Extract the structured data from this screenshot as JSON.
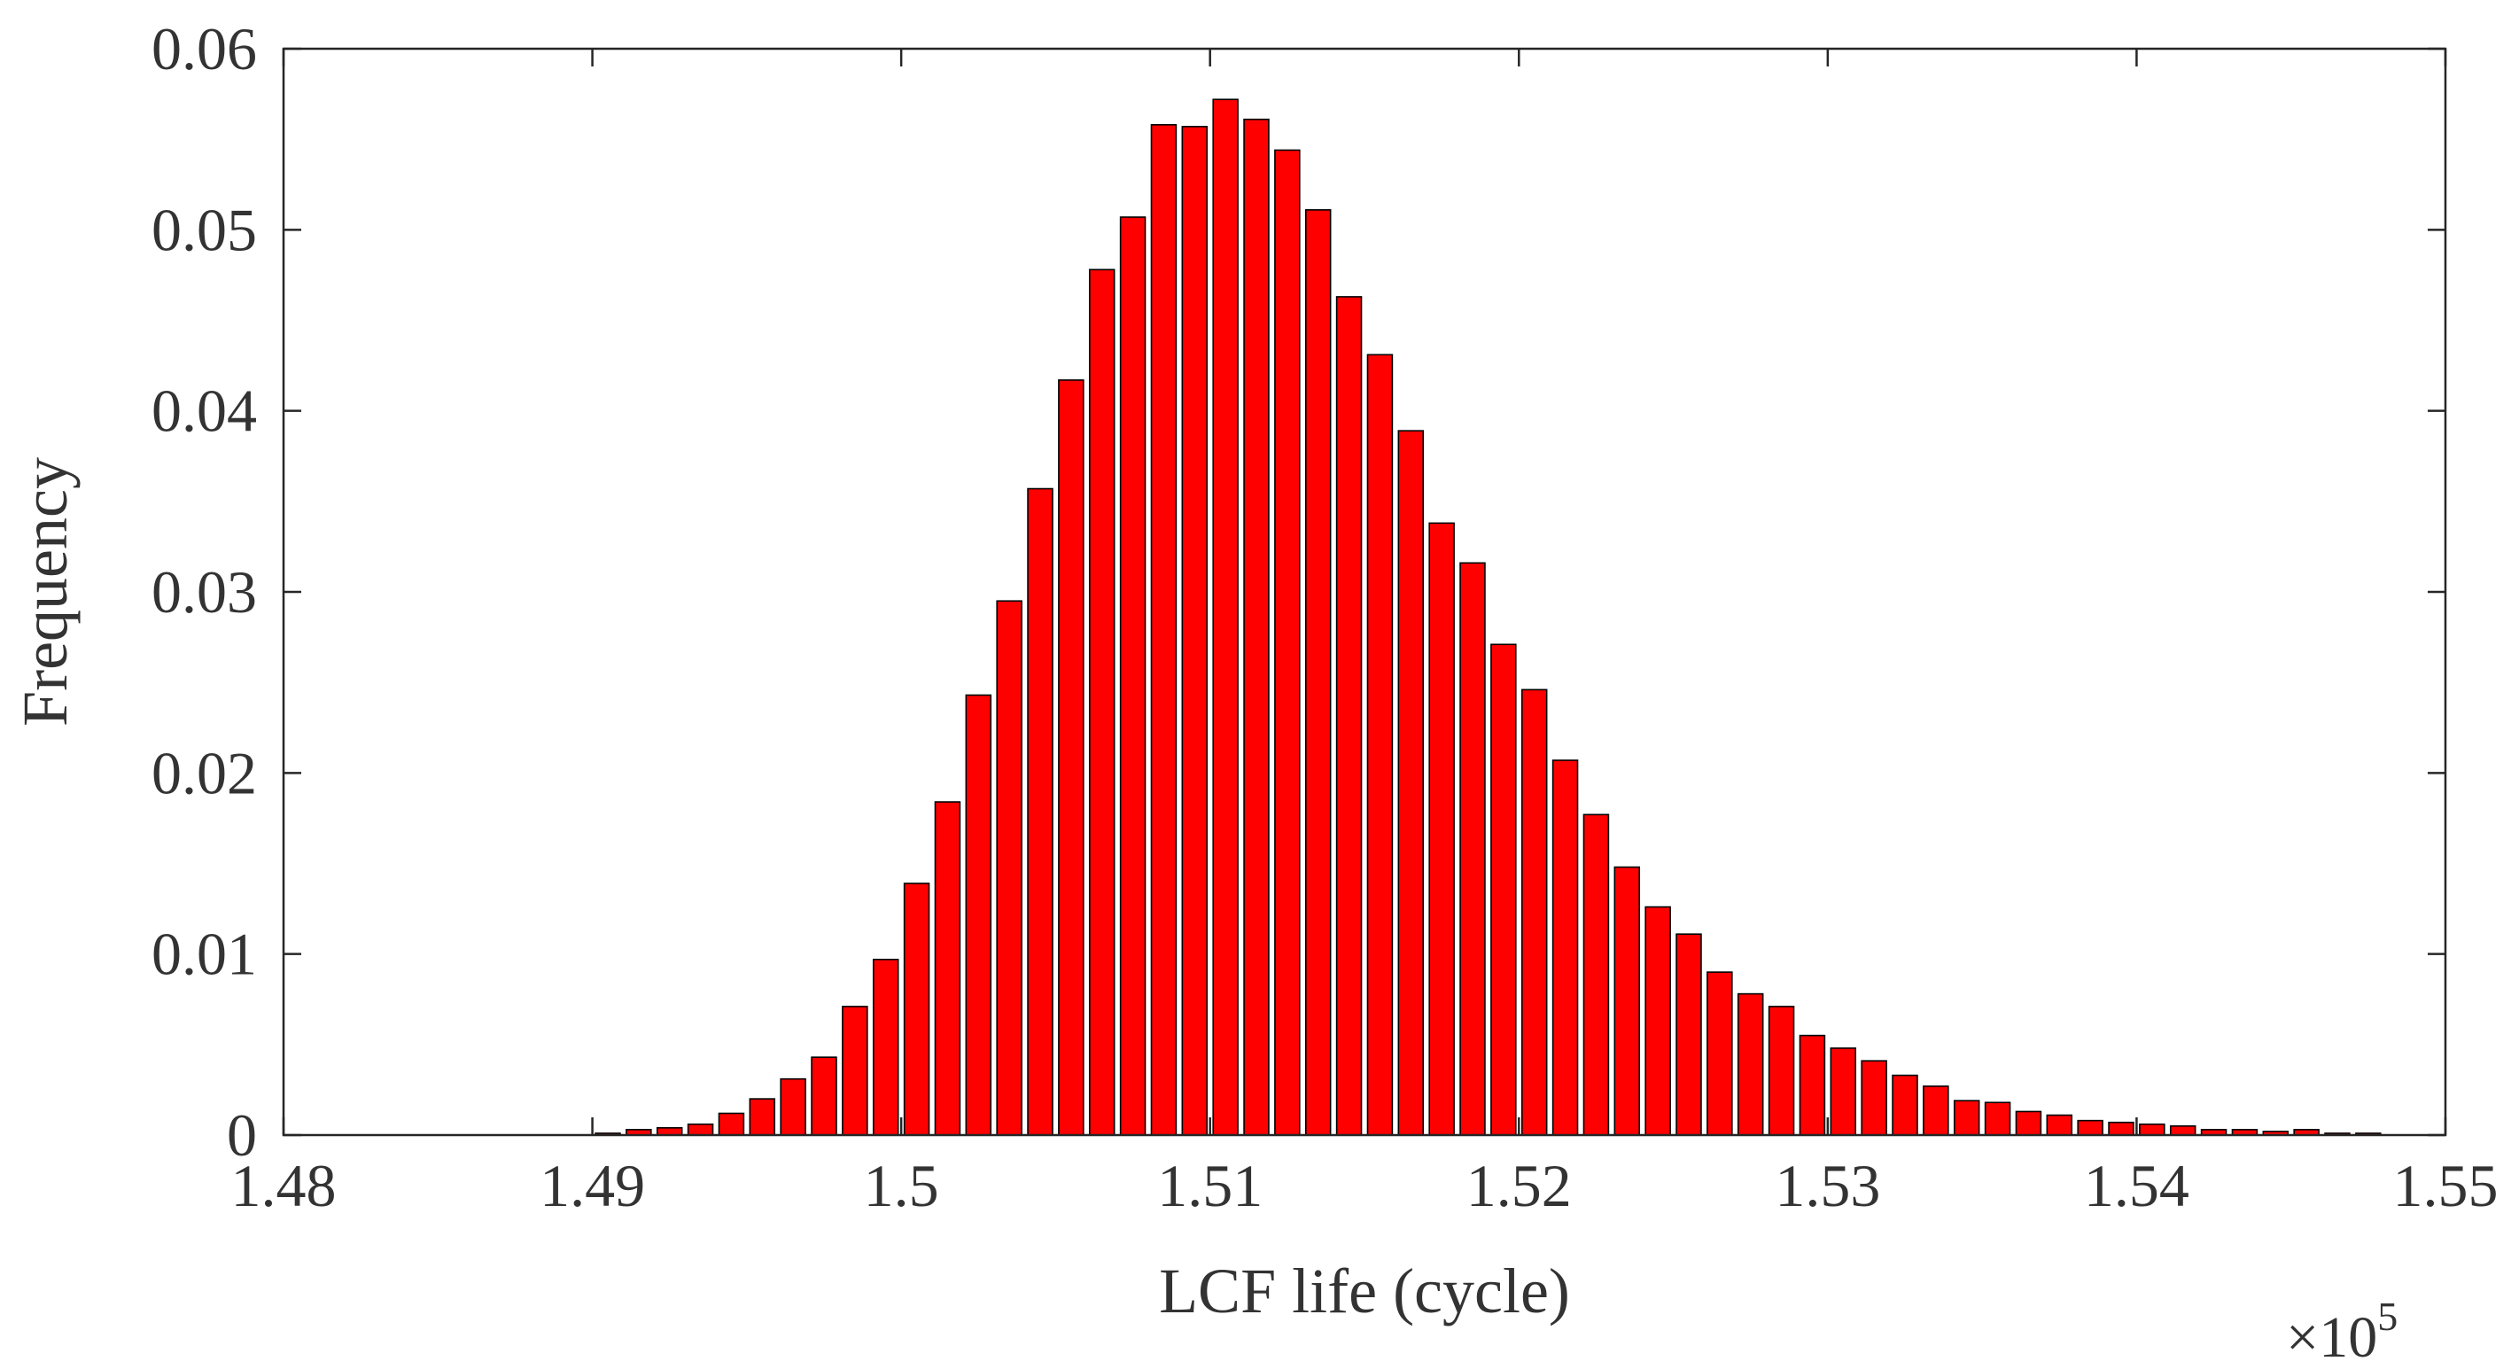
{
  "chart_data": {
    "type": "bar",
    "title": "",
    "xlabel": "LCF life (cycle)",
    "ylabel": "Frequency",
    "x_multiplier_label": "×10",
    "x_multiplier_exponent": "5",
    "xlim": [
      1.48,
      1.55
    ],
    "ylim": [
      0,
      0.06
    ],
    "grid": false,
    "xticks": [
      1.48,
      1.49,
      1.5,
      1.51,
      1.52,
      1.53,
      1.54,
      1.55
    ],
    "xtick_labels": [
      "1.48",
      "1.49",
      "1.5",
      "1.51",
      "1.52",
      "1.53",
      "1.54",
      "1.55"
    ],
    "yticks": [
      0,
      0.01,
      0.02,
      0.03,
      0.04,
      0.05,
      0.06
    ],
    "ytick_labels": [
      "0",
      "0.01",
      "0.02",
      "0.03",
      "0.04",
      "0.05",
      "0.06"
    ],
    "bin_width": 0.001,
    "bar_color": "#ff0000",
    "bar_edge_color": "#000000",
    "axis_color": "#262626",
    "x": [
      1.4905,
      1.4915,
      1.4925,
      1.4935,
      1.4945,
      1.4955,
      1.4965,
      1.4975,
      1.4985,
      1.4995,
      1.5005,
      1.5015,
      1.5025,
      1.5035,
      1.5045,
      1.5055,
      1.5065,
      1.5075,
      1.5085,
      1.5095,
      1.5105,
      1.5115,
      1.5125,
      1.5135,
      1.5145,
      1.5155,
      1.5165,
      1.5175,
      1.5185,
      1.5195,
      1.5205,
      1.5215,
      1.5225,
      1.5235,
      1.5245,
      1.5255,
      1.5265,
      1.5275,
      1.5285,
      1.5295,
      1.5305,
      1.5315,
      1.5325,
      1.5335,
      1.5345,
      1.5355,
      1.5365,
      1.5375,
      1.5385,
      1.5395,
      1.5405,
      1.5415,
      1.5425,
      1.5435,
      1.5445,
      1.5455,
      1.5465,
      1.5475
    ],
    "values": [
      0.0001,
      0.0003,
      0.0004,
      0.0006,
      0.0012,
      0.002,
      0.0031,
      0.0043,
      0.0071,
      0.0097,
      0.0139,
      0.0184,
      0.0243,
      0.0295,
      0.0357,
      0.0417,
      0.0478,
      0.0507,
      0.0558,
      0.0557,
      0.0572,
      0.0561,
      0.0544,
      0.0511,
      0.0463,
      0.0431,
      0.0389,
      0.0338,
      0.0316,
      0.0271,
      0.0246,
      0.0207,
      0.0177,
      0.0148,
      0.0126,
      0.0111,
      0.009,
      0.0078,
      0.0071,
      0.0055,
      0.0048,
      0.0041,
      0.0033,
      0.0027,
      0.0019,
      0.0018,
      0.0013,
      0.0011,
      0.0008,
      0.0007,
      0.0006,
      0.0005,
      0.0003,
      0.0003,
      0.0002,
      0.0003,
      0.0001,
      0.0001
    ]
  }
}
